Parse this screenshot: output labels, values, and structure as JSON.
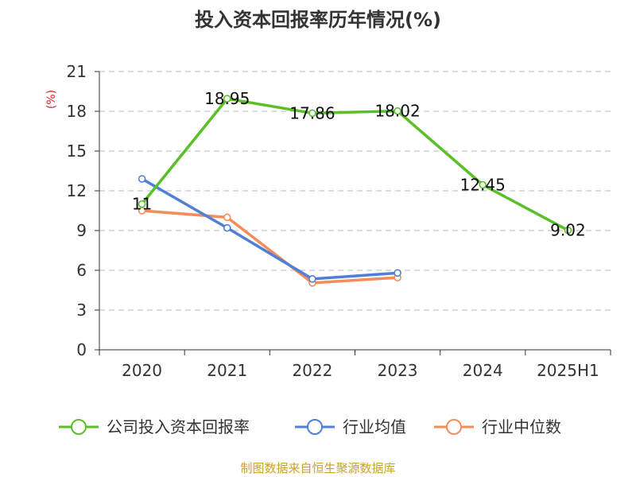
{
  "chart_data": {
    "type": "line",
    "title": "投入资本回报率历年情况(%)",
    "ylabel": "(%)",
    "xlabel": "",
    "categories": [
      "2020",
      "2021",
      "2022",
      "2023",
      "2024",
      "2025H1"
    ],
    "ylim": [
      0,
      21
    ],
    "yticks": [
      0,
      3,
      6,
      9,
      12,
      15,
      18,
      21
    ],
    "grid": true,
    "legend_position": "bottom",
    "series": [
      {
        "name": "公司投入资本回报率",
        "color": "#5bbf2a",
        "values": [
          11,
          18.95,
          17.86,
          18.02,
          12.45,
          9.02
        ],
        "labels": [
          "11",
          "18.95",
          "17.86",
          "18.02",
          "12.45",
          "9.02"
        ]
      },
      {
        "name": "行业均值",
        "color": "#4f7fd6",
        "values": [
          12.9,
          9.2,
          5.35,
          5.8,
          null,
          null
        ]
      },
      {
        "name": "行业中位数",
        "color": "#f58c5a",
        "values": [
          10.5,
          10.0,
          5.05,
          5.45,
          null,
          null
        ]
      }
    ],
    "ylabel_color": "#e02020"
  },
  "source": {
    "text": "制图数据来自恒生聚源数据库",
    "color": "#c9a227"
  }
}
